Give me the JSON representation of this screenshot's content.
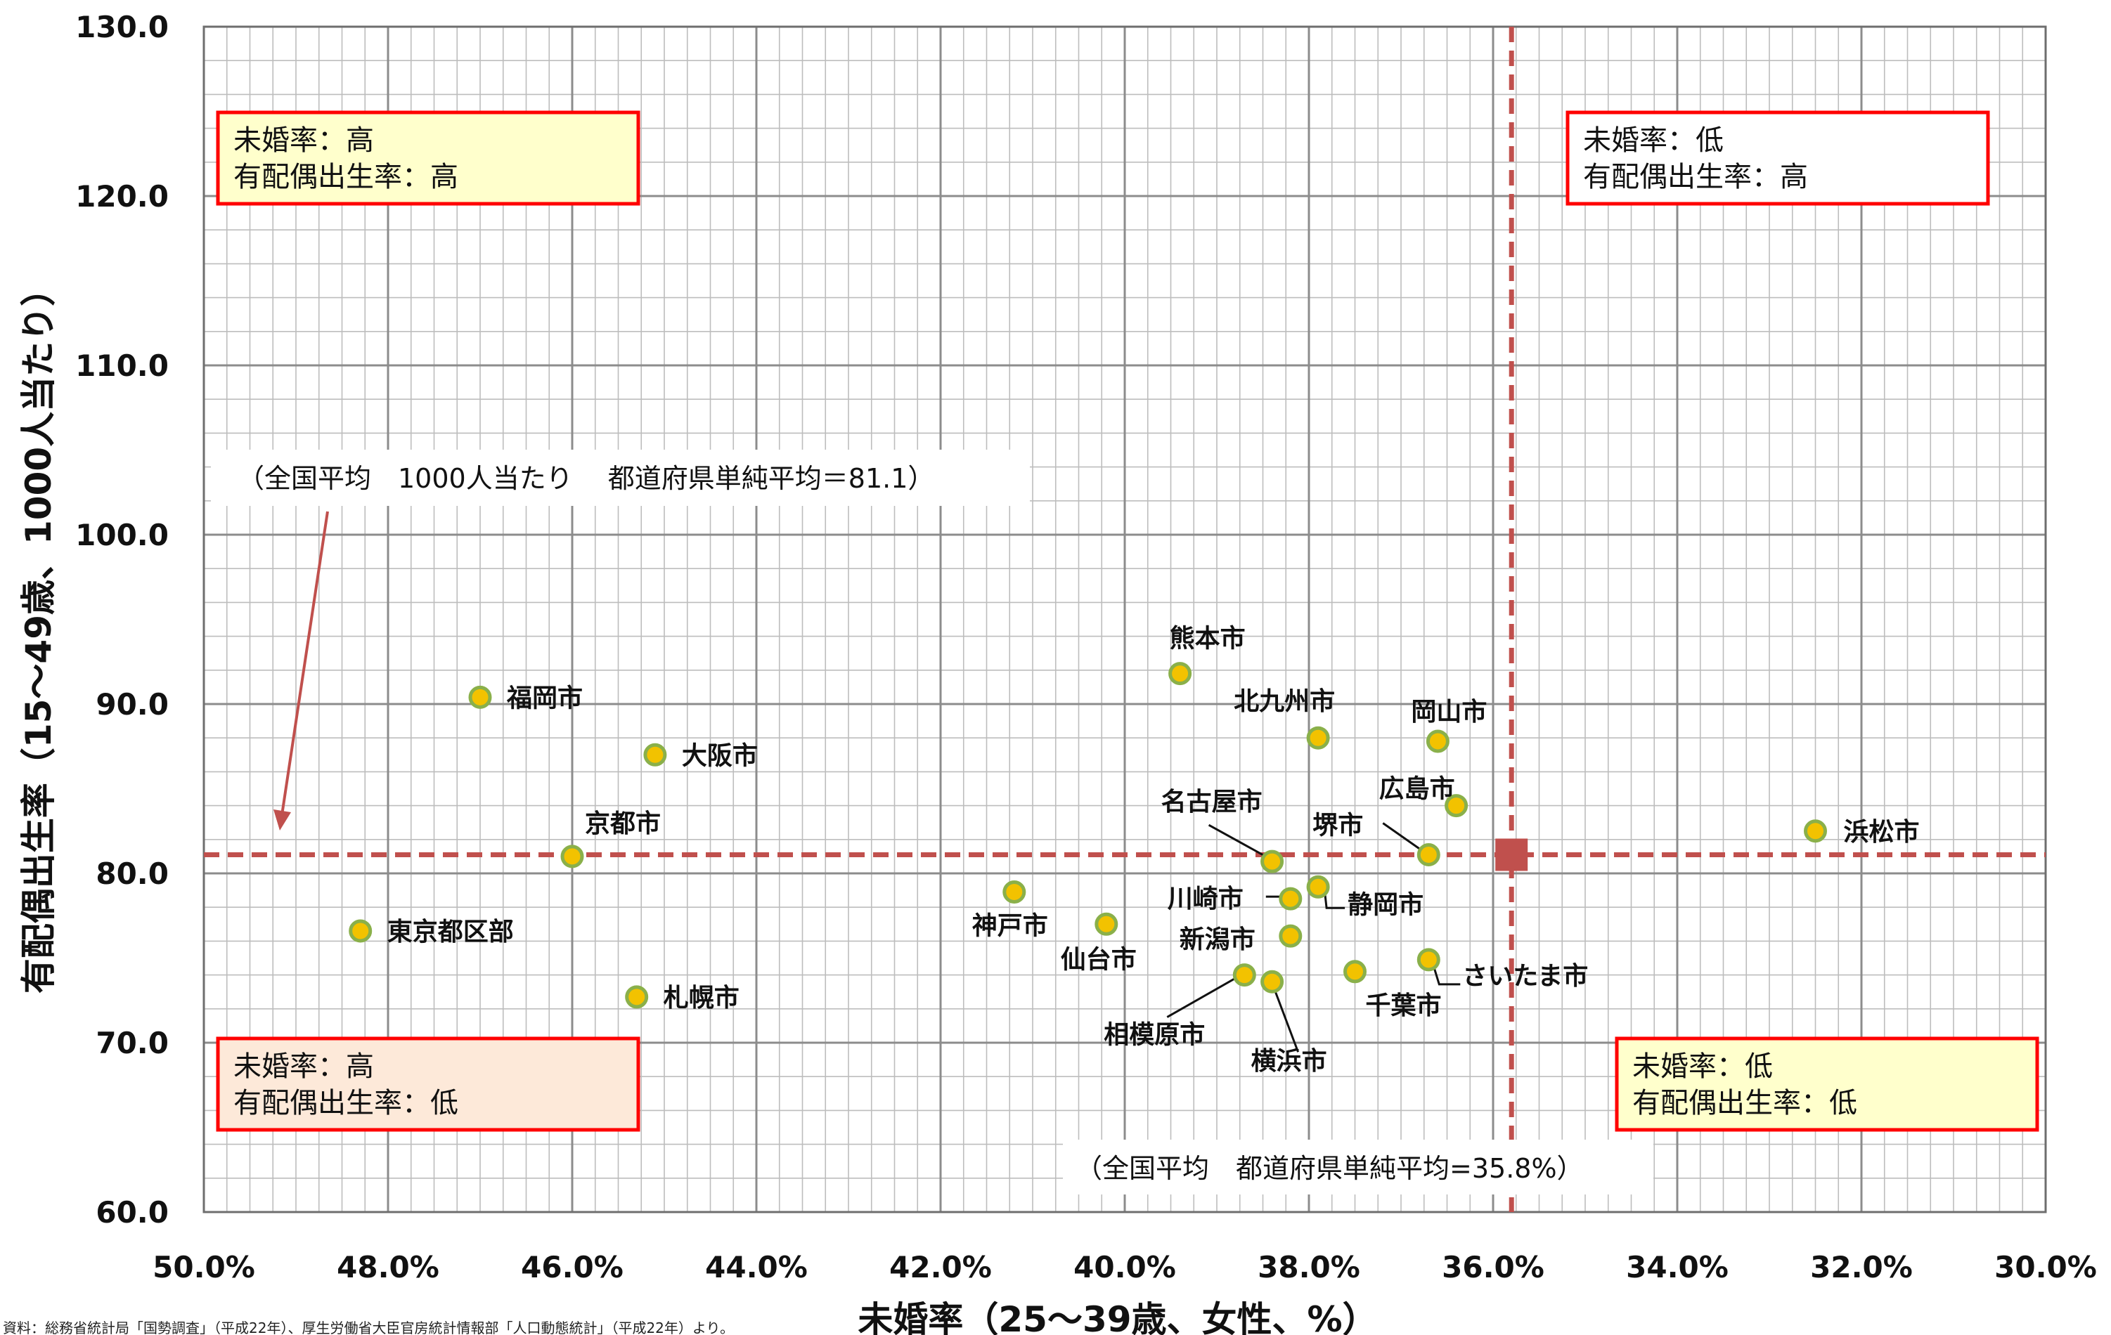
{
  "chart_data": {
    "type": "scatter",
    "title": "",
    "xlabel": "未婚率（25～39歳、女性、%）",
    "ylabel": "有配偶出生率（15～49歳、1000人当たり）",
    "xlim": [
      50.0,
      30.0
    ],
    "x_reversed": true,
    "ylim": [
      60.0,
      130.0
    ],
    "x_ticks": [
      "50.0%",
      "48.0%",
      "46.0%",
      "44.0%",
      "42.0%",
      "40.0%",
      "38.0%",
      "36.0%",
      "34.0%",
      "32.0%",
      "30.0%"
    ],
    "y_ticks": [
      "60.0",
      "70.0",
      "80.0",
      "90.0",
      "100.0",
      "110.0",
      "120.0",
      "130.0"
    ],
    "grid": true,
    "points": [
      {
        "label": "福岡市",
        "x": 47.0,
        "y": 90.4
      },
      {
        "label": "大阪市",
        "x": 45.1,
        "y": 87.0
      },
      {
        "label": "京都市",
        "x": 46.0,
        "y": 81.0
      },
      {
        "label": "東京都区部",
        "x": 48.3,
        "y": 76.6
      },
      {
        "label": "札幌市",
        "x": 45.3,
        "y": 72.7
      },
      {
        "label": "神戸市",
        "x": 41.2,
        "y": 78.9
      },
      {
        "label": "仙台市",
        "x": 40.2,
        "y": 77.0
      },
      {
        "label": "熊本市",
        "x": 39.4,
        "y": 91.8
      },
      {
        "label": "北九州市",
        "x": 37.9,
        "y": 88.0
      },
      {
        "label": "岡山市",
        "x": 36.6,
        "y": 87.8
      },
      {
        "label": "広島市",
        "x": 36.4,
        "y": 84.0
      },
      {
        "label": "名古屋市",
        "x": 38.4,
        "y": 80.7
      },
      {
        "label": "堺市",
        "x": 36.7,
        "y": 81.1
      },
      {
        "label": "川崎市",
        "x": 38.2,
        "y": 78.5
      },
      {
        "label": "静岡市",
        "x": 37.9,
        "y": 79.2
      },
      {
        "label": "新潟市",
        "x": 38.2,
        "y": 76.3
      },
      {
        "label": "相模原市",
        "x": 38.7,
        "y": 74.0
      },
      {
        "label": "横浜市",
        "x": 38.4,
        "y": 73.6
      },
      {
        "label": "千葉市",
        "x": 37.5,
        "y": 74.2
      },
      {
        "label": "さいたま市",
        "x": 36.7,
        "y": 74.9
      },
      {
        "label": "浜松市",
        "x": 32.5,
        "y": 82.5
      }
    ],
    "average_point": {
      "x": 35.8,
      "y": 81.1
    },
    "reference_lines": {
      "x": 35.8,
      "y": 81.1
    },
    "annotations": {
      "y_average": "（全国平均　1000人当たり　 都道府県単純平均＝81.1）",
      "x_average": "（全国平均　都道府県単純平均=35.8%）"
    },
    "quadrants": [
      {
        "id": "top-left",
        "lines": [
          "未婚率：高",
          "有配偶出生率：高"
        ],
        "fill": "#ffffcc"
      },
      {
        "id": "top-right",
        "lines": [
          "未婚率：低",
          "有配偶出生率：高"
        ],
        "fill": "#ffffff"
      },
      {
        "id": "bottom-left",
        "lines": [
          "未婚率：高",
          "有配偶出生率：低"
        ],
        "fill": "#fde9d9"
      },
      {
        "id": "bottom-right",
        "lines": [
          "未婚率：低",
          "有配偶出生率：低"
        ],
        "fill": "#ffffcc"
      }
    ],
    "source": "資料：総務省統計局「国勢調査」（平成22年）、厚生労働省大臣官房統計情報部「人口動態統計」（平成22年）より。"
  },
  "colors": {
    "point_fill": "#f2c200",
    "point_stroke": "#8ab04a",
    "reference_line": "#c0504d",
    "average_marker": "#c0504d",
    "box_border": "#ff0000",
    "grid_major": "#8c8c8c",
    "grid_minor": "#bdbdbd"
  }
}
